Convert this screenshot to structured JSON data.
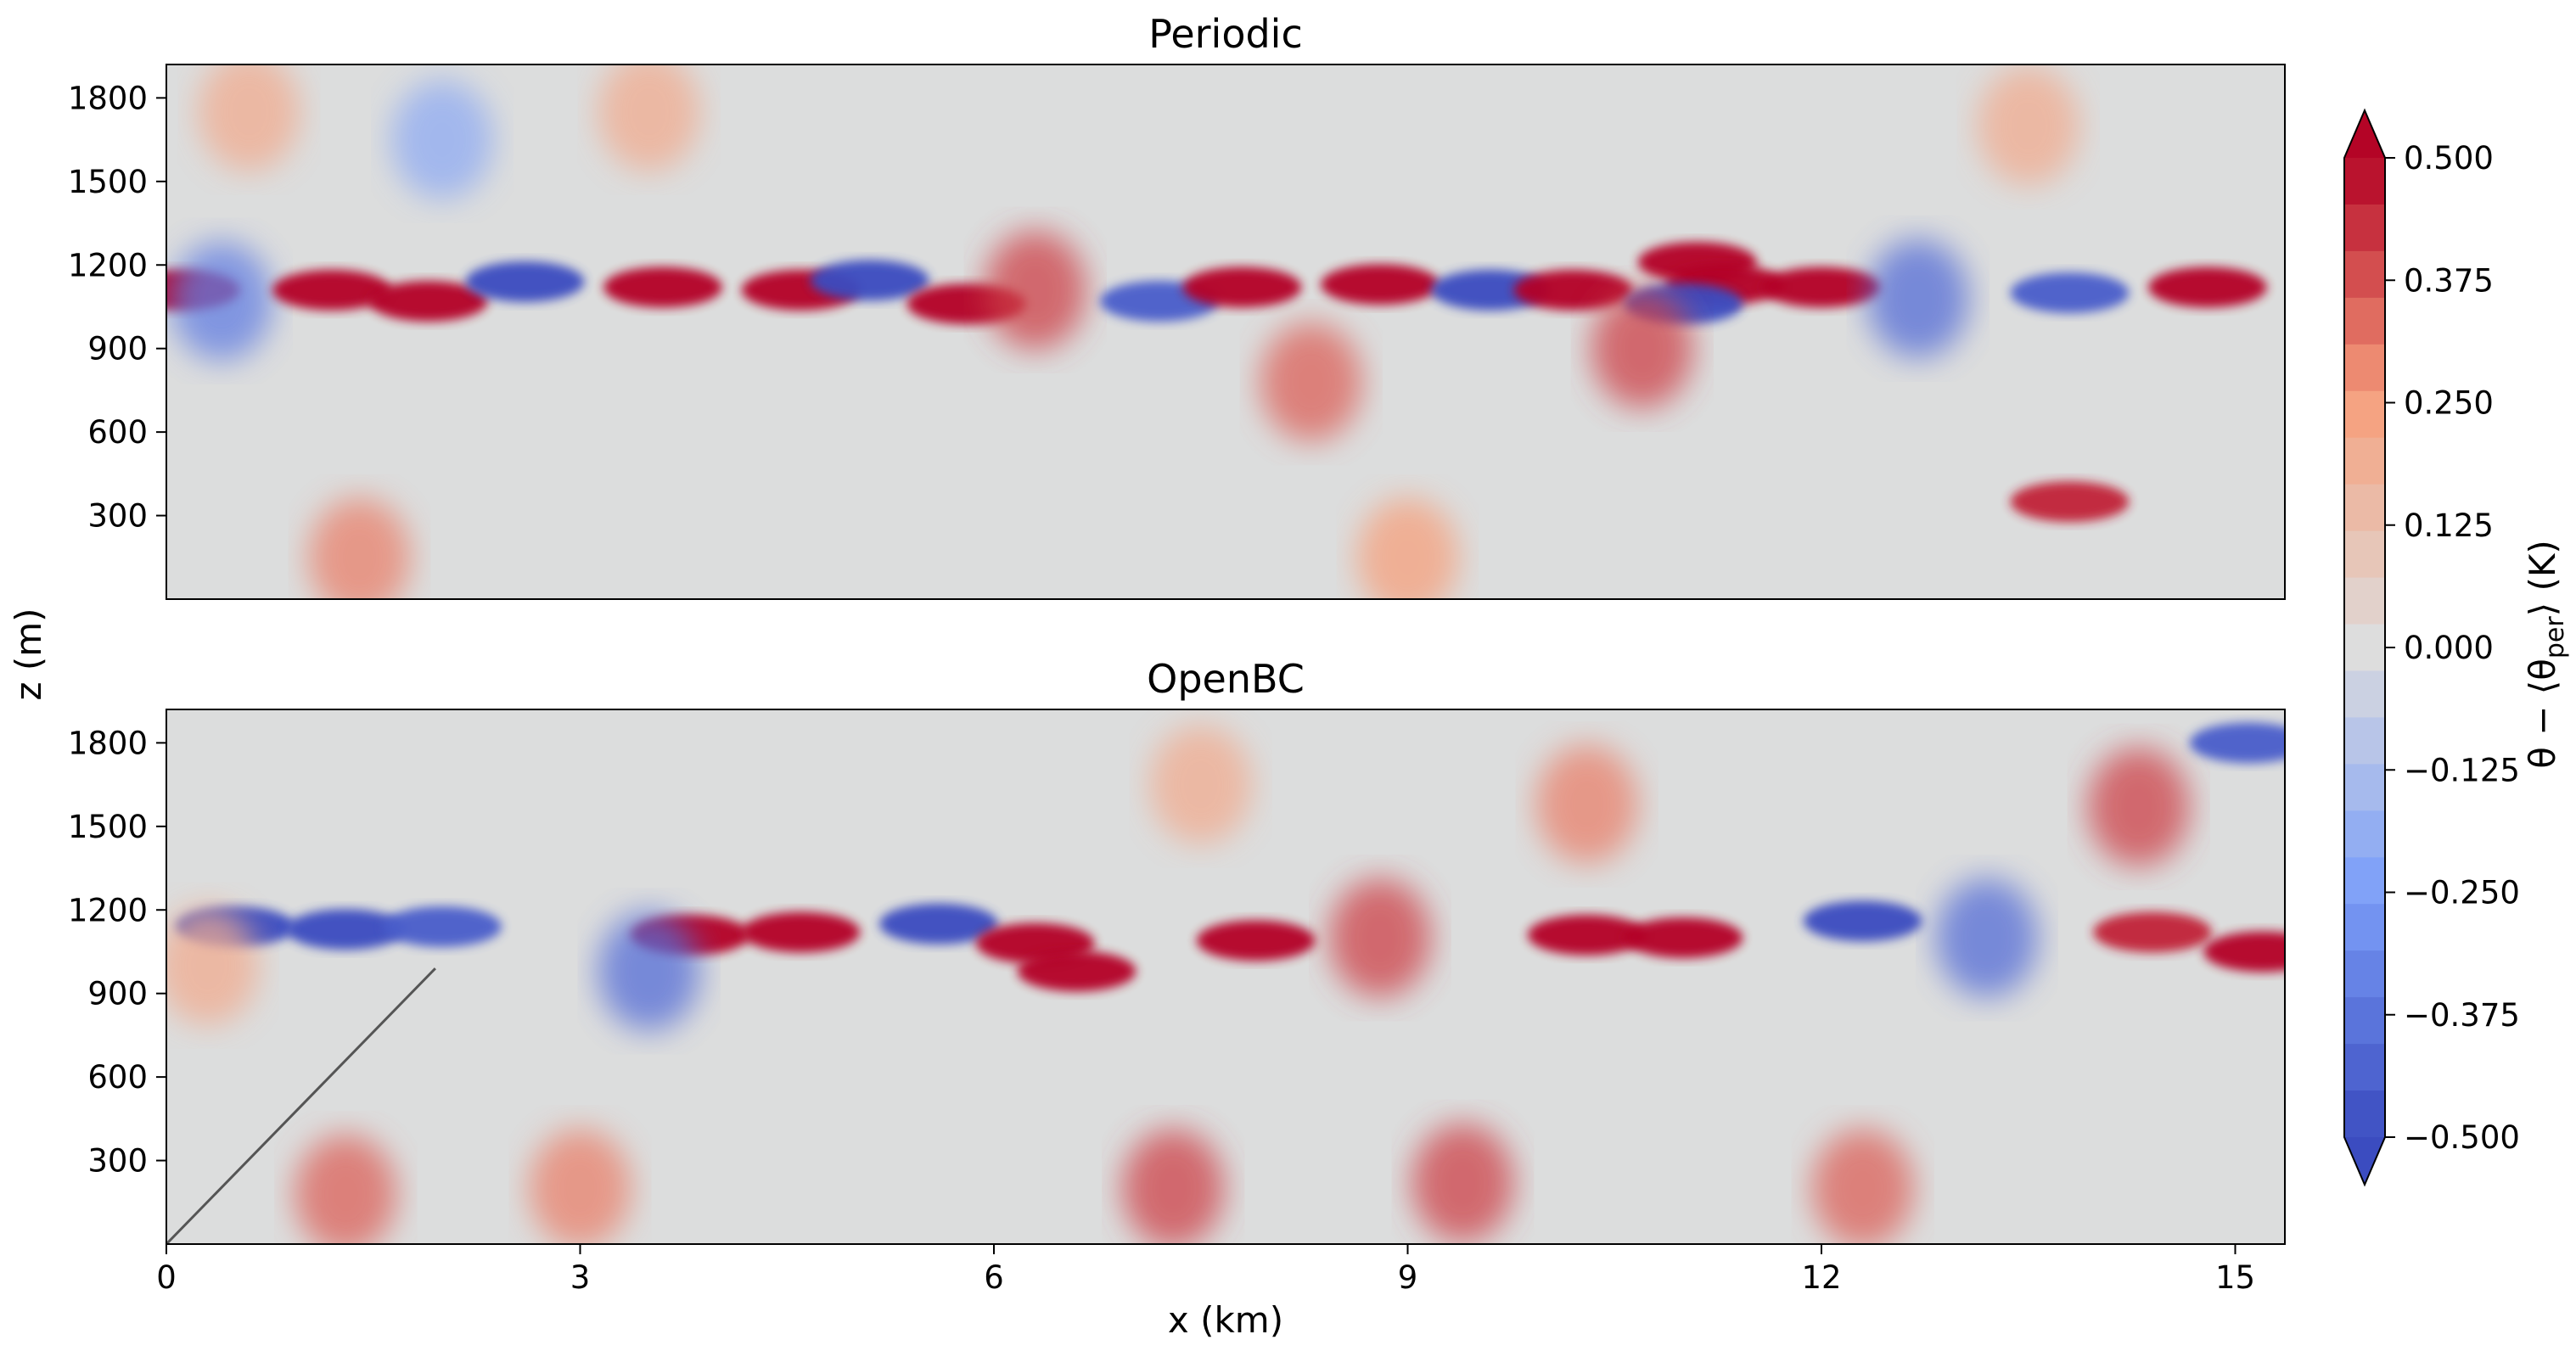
{
  "chart_data": {
    "type": "heatmap",
    "colormap": "coolwarm",
    "panels": [
      {
        "title": "Periodic",
        "xlim": [
          0,
          15.36
        ],
        "ylim": [
          0,
          1920
        ],
        "yticks": [
          300,
          600,
          900,
          1200,
          1500,
          1800
        ],
        "xticks_shown": false,
        "features": {
          "inversion_height_m": 1110,
          "inversion_band": "alternating strong warm (red) and cold (blue) anomalies along the inversion",
          "upper_layer": "weak warm anomalies near 1700-1800 m, weak cold near 1500 m",
          "boundary_layer": "weak near-neutral anomalies with warm plumes near the surface"
        },
        "hotspots": [
          {
            "x": 0.1,
            "z": 1110,
            "v": 0.55
          },
          {
            "x": 0.4,
            "z": 1070,
            "v": -0.35
          },
          {
            "x": 1.2,
            "z": 1110,
            "v": 0.5
          },
          {
            "x": 1.9,
            "z": 1070,
            "v": 0.5
          },
          {
            "x": 2.6,
            "z": 1140,
            "v": -0.5
          },
          {
            "x": 3.6,
            "z": 1120,
            "v": 0.5
          },
          {
            "x": 4.6,
            "z": 1110,
            "v": 0.55
          },
          {
            "x": 5.1,
            "z": 1145,
            "v": -0.5
          },
          {
            "x": 5.8,
            "z": 1060,
            "v": 0.55
          },
          {
            "x": 6.3,
            "z": 1110,
            "v": 0.4
          },
          {
            "x": 7.2,
            "z": 1070,
            "v": -0.45
          },
          {
            "x": 7.8,
            "z": 1120,
            "v": 0.55
          },
          {
            "x": 8.8,
            "z": 1130,
            "v": 0.5
          },
          {
            "x": 9.6,
            "z": 1110,
            "v": -0.55
          },
          {
            "x": 10.2,
            "z": 1110,
            "v": 0.55
          },
          {
            "x": 11.1,
            "z": 1210,
            "v": 0.55
          },
          {
            "x": 11.3,
            "z": 1130,
            "v": 0.55
          },
          {
            "x": 11.0,
            "z": 1060,
            "v": -0.5
          },
          {
            "x": 12.0,
            "z": 1120,
            "v": 0.5
          },
          {
            "x": 12.7,
            "z": 1080,
            "v": -0.4
          },
          {
            "x": 13.8,
            "z": 1100,
            "v": -0.45
          },
          {
            "x": 14.8,
            "z": 1120,
            "v": 0.55
          },
          {
            "x": 8.3,
            "z": 780,
            "v": 0.35
          },
          {
            "x": 10.7,
            "z": 900,
            "v": 0.4
          },
          {
            "x": 13.8,
            "z": 350,
            "v": 0.45
          },
          {
            "x": 1.4,
            "z": 150,
            "v": 0.3
          },
          {
            "x": 9.0,
            "z": 150,
            "v": 0.25
          },
          {
            "x": 0.6,
            "z": 1750,
            "v": 0.2
          },
          {
            "x": 3.5,
            "z": 1750,
            "v": 0.2
          },
          {
            "x": 2.0,
            "z": 1650,
            "v": -0.2
          },
          {
            "x": 13.5,
            "z": 1700,
            "v": 0.2
          }
        ]
      },
      {
        "title": "OpenBC",
        "xlim": [
          0,
          15.36
        ],
        "ylim": [
          0,
          1920
        ],
        "xticks": [
          0,
          3,
          6,
          9,
          12,
          15
        ],
        "yticks": [
          300,
          600,
          900,
          1200,
          1500,
          1800
        ],
        "features": {
          "inversion_height_m": 1110,
          "inversion_band": "strong cold (blue) anomaly near the inflow boundary, strong warm (red) patches downstream",
          "upper_layer": "warm anomalies near 1600-1800 m, strongest near x = 14 km",
          "boundary_layer": "weak anomalies with warm near-surface plumes"
        },
        "overlay_line": {
          "x": [
            0,
            1.95
          ],
          "y": [
            0,
            990
          ]
        },
        "hotspots": [
          {
            "x": 0.5,
            "z": 1140,
            "v": -0.55
          },
          {
            "x": 1.3,
            "z": 1130,
            "v": -0.55
          },
          {
            "x": 2.0,
            "z": 1140,
            "v": -0.45
          },
          {
            "x": 0.3,
            "z": 1000,
            "v": 0.2
          },
          {
            "x": 3.8,
            "z": 1110,
            "v": 0.55
          },
          {
            "x": 4.6,
            "z": 1120,
            "v": 0.5
          },
          {
            "x": 5.6,
            "z": 1150,
            "v": -0.5
          },
          {
            "x": 6.3,
            "z": 1080,
            "v": 0.55
          },
          {
            "x": 6.6,
            "z": 980,
            "v": 0.5
          },
          {
            "x": 7.9,
            "z": 1090,
            "v": 0.55
          },
          {
            "x": 8.8,
            "z": 1100,
            "v": 0.4
          },
          {
            "x": 10.3,
            "z": 1110,
            "v": 0.55
          },
          {
            "x": 11.0,
            "z": 1100,
            "v": 0.5
          },
          {
            "x": 12.3,
            "z": 1160,
            "v": -0.5
          },
          {
            "x": 13.2,
            "z": 1100,
            "v": -0.4
          },
          {
            "x": 14.4,
            "z": 1120,
            "v": 0.45
          },
          {
            "x": 15.2,
            "z": 1050,
            "v": 0.5
          },
          {
            "x": 3.5,
            "z": 980,
            "v": -0.4
          },
          {
            "x": 14.3,
            "z": 1570,
            "v": 0.4
          },
          {
            "x": 15.1,
            "z": 1800,
            "v": -0.45
          },
          {
            "x": 10.3,
            "z": 1580,
            "v": 0.3
          },
          {
            "x": 7.5,
            "z": 1650,
            "v": 0.2
          },
          {
            "x": 12.3,
            "z": 200,
            "v": 0.35
          },
          {
            "x": 1.3,
            "z": 180,
            "v": 0.35
          },
          {
            "x": 3.0,
            "z": 200,
            "v": 0.3
          },
          {
            "x": 7.3,
            "z": 200,
            "v": 0.4
          },
          {
            "x": 9.4,
            "z": 220,
            "v": 0.4
          }
        ]
      }
    ],
    "ylabel": "z (m)",
    "xlabel": "x (km)",
    "colorbar": {
      "label": "θ − ⟨θ_per⟩ (K)",
      "label_main": "θ − ⟨θ",
      "label_sub": "per",
      "label_end": "⟩ (K)",
      "min": -0.5,
      "max": 0.5,
      "levels": 21,
      "extend": "both",
      "ticks": [
        "0.500",
        "0.375",
        "0.250",
        "0.125",
        "0.000",
        "−0.125",
        "−0.250",
        "−0.375",
        "−0.500"
      ]
    }
  }
}
